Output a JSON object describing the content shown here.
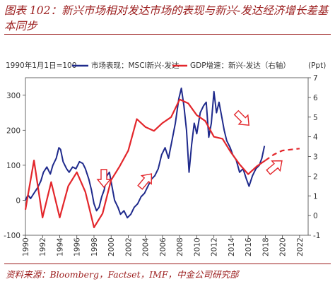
{
  "title": "图表 102：新兴市场相对发达市场的表现与新兴-发达经济增长差基本同步",
  "source": "资料来源：Bloomberg，Factset，IMF，中金公司研究部",
  "chart_data": {
    "type": "line",
    "left_note": "1990年1月1日=100",
    "right_unit": "(Ppt)",
    "x_ticks": [
      "1990",
      "1992",
      "1994",
      "1996",
      "1998",
      "2000",
      "2002",
      "2004",
      "2006",
      "2008",
      "2010",
      "2012",
      "2014",
      "2016",
      "2018",
      "2020",
      "2022"
    ],
    "y_left_ticks": [
      "-100",
      "0",
      "100",
      "200",
      "300"
    ],
    "y_right_ticks": [
      "-1",
      "0",
      "1",
      "2",
      "3",
      "4",
      "5",
      "6",
      "7"
    ],
    "xlim": [
      1990,
      2023
    ],
    "ylim_left": [
      -100,
      350
    ],
    "ylim_right": [
      -1,
      7
    ],
    "series": [
      {
        "name": "市场表现：MSCI新兴-发达",
        "axis": "left",
        "color": "#1f2a8c",
        "x": [
          1990,
          1990.3,
          1990.6,
          1991,
          1991.4,
          1991.8,
          1992.1,
          1992.5,
          1992.9,
          1993.2,
          1993.6,
          1993.9,
          1994.1,
          1994.4,
          1994.8,
          1995.1,
          1995.5,
          1995.9,
          1996.3,
          1996.7,
          1997,
          1997.4,
          1997.7,
          1998,
          1998.3,
          1998.6,
          1998.9,
          1999.2,
          1999.5,
          1999.8,
          2000.1,
          2000.4,
          2000.8,
          2001.1,
          2001.5,
          2001.9,
          2002.3,
          2002.7,
          2003.1,
          2003.5,
          2003.9,
          2004.3,
          2004.7,
          2005.1,
          2005.5,
          2005.9,
          2006.3,
          2006.7,
          2007.1,
          2007.5,
          2007.9,
          2008.2,
          2008.5,
          2008.8,
          2009.1,
          2009.4,
          2009.7,
          2010,
          2010.4,
          2010.8,
          2011.1,
          2011.4,
          2011.7,
          2012,
          2012.3,
          2012.6,
          2012.9,
          2013.2,
          2013.5,
          2013.9,
          2014.2,
          2014.6,
          2015,
          2015.4,
          2015.8,
          2016.1,
          2016.5,
          2016.9,
          2017.3,
          2017.6,
          2017.9
        ],
        "values": [
          0,
          15,
          5,
          20,
          35,
          55,
          80,
          95,
          75,
          100,
          120,
          150,
          145,
          110,
          90,
          80,
          95,
          90,
          110,
          105,
          90,
          60,
          30,
          -10,
          -30,
          -20,
          10,
          30,
          70,
          80,
          40,
          0,
          -20,
          -40,
          -30,
          -50,
          -40,
          -20,
          -10,
          10,
          20,
          40,
          60,
          70,
          90,
          130,
          150,
          120,
          170,
          220,
          290,
          320,
          270,
          200,
          80,
          160,
          220,
          190,
          250,
          270,
          280,
          180,
          220,
          310,
          250,
          280,
          240,
          200,
          170,
          150,
          130,
          115,
          80,
          90,
          60,
          40,
          70,
          90,
          100,
          120,
          155
        ]
      },
      {
        "name": "GDP增速：新兴-发达（右轴）",
        "axis": "right",
        "color": "#e3262b",
        "x": [
          1990,
          1991,
          1992,
          1993,
          1994,
          1995,
          1996,
          1997,
          1998,
          1999,
          2000,
          2001,
          2002,
          2003,
          2004,
          2005,
          2006,
          2007,
          2008,
          2009,
          2010,
          2011,
          2012,
          2013,
          2014,
          2015,
          2016,
          2017,
          2018
        ],
        "values": [
          0.3,
          2.8,
          -0.1,
          1.7,
          -0.1,
          1.5,
          2.2,
          1.2,
          -0.6,
          0.1,
          1.8,
          2.5,
          3.3,
          4.9,
          4.5,
          4.3,
          4.7,
          5.0,
          5.9,
          5.7,
          5.1,
          4.8,
          4.0,
          3.9,
          3.2,
          2.6,
          2.1,
          2.5,
          2.8
        ],
        "projection_x": [
          2018,
          2019,
          2020,
          2021,
          2022
        ],
        "projection_values": [
          2.8,
          3.1,
          3.3,
          3.35,
          3.4
        ]
      }
    ]
  }
}
